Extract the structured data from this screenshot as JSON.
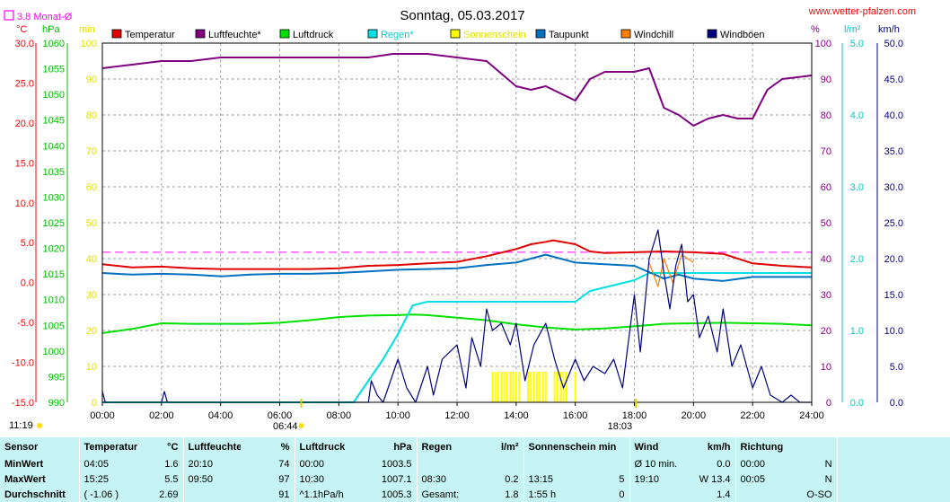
{
  "title": "Sonntag, 05.03.2017",
  "website": "www.wetter-pfalzen.com",
  "monthly_avg": "3.8 Monat-Ø",
  "monthly_avg_value": 3.8,
  "axis_headers": {
    "temp": "°C",
    "pressure": "hPa",
    "minutes": "min",
    "humidity": "%",
    "rain": "l/m²",
    "wind": "km/h"
  },
  "legend": [
    {
      "name": "Temperatur",
      "color": "#e00000"
    },
    {
      "name": "Luftfeuchte*",
      "color": "#800080"
    },
    {
      "name": "Luftdruck",
      "color": "#00e000"
    },
    {
      "name": "Regen*",
      "color": "#00e0e0"
    },
    {
      "name": "Sonnenschein",
      "color": "#ffff00"
    },
    {
      "name": "Taupunkt",
      "color": "#0070c0"
    },
    {
      "name": "Windchill",
      "color": "#ff8000"
    },
    {
      "name": "Windböen",
      "color": "#000080"
    }
  ],
  "axes": {
    "temp": {
      "ticks": [
        "30.0",
        "25.0",
        "20.0",
        "15.0",
        "10.0",
        "5.0",
        "0.0",
        "-5.0",
        "-10.0",
        "-15.0"
      ],
      "color": "#ff0000",
      "min": -15,
      "max": 30
    },
    "pressure": {
      "ticks": [
        "1060",
        "1055",
        "1050",
        "1045",
        "1040",
        "1035",
        "1030",
        "1025",
        "1020",
        "1015",
        "1010",
        "1005",
        "1000",
        "995",
        "990"
      ],
      "color": "#00c000",
      "min": 990,
      "max": 1060
    },
    "minutes": {
      "ticks": [
        "100",
        "90",
        "80",
        "70",
        "60",
        "50",
        "40",
        "30",
        "20",
        "10",
        "0"
      ],
      "color": "#e0e000",
      "min": 0,
      "max": 100
    },
    "humidity": {
      "ticks": [
        "100",
        "90",
        "80",
        "70",
        "60",
        "50",
        "40",
        "30",
        "20",
        "10",
        "0"
      ],
      "color": "#800080",
      "min": 0,
      "max": 100
    },
    "rain": {
      "ticks": [
        "5.0",
        "4.0",
        "3.0",
        "2.0",
        "1.0",
        "0.0"
      ],
      "color": "#00c8c8",
      "min": 0,
      "max": 5
    },
    "wind": {
      "ticks": [
        "50.0",
        "45.0",
        "40.0",
        "35.0",
        "30.0",
        "25.0",
        "20.0",
        "15.0",
        "10.0",
        "5.0",
        "0.0"
      ],
      "color": "#000080",
      "min": 0,
      "max": 50
    }
  },
  "x_ticks": [
    "00:00",
    "02:00",
    "04:00",
    "06:00",
    "08:00",
    "10:00",
    "12:00",
    "14:00",
    "16:00",
    "18:00",
    "20:00",
    "22:00",
    "24:00"
  ],
  "sunrise": "06:44",
  "sunset": "18:03",
  "sunrise_hour": 6.73,
  "sunset_hour": 18.05,
  "corner_time": "11:19",
  "chart_data": {
    "type": "line",
    "x_unit": "hour",
    "xlim": [
      0,
      24
    ],
    "grid": true,
    "series": [
      {
        "name": "Temperatur",
        "axis": "temp",
        "color": "#e00000",
        "x": [
          0,
          1,
          2,
          3,
          4,
          5,
          6,
          7,
          8,
          9,
          10,
          11,
          12,
          13,
          14,
          14.5,
          15,
          15.25,
          16,
          16.5,
          17,
          18,
          19,
          20,
          21,
          22,
          23,
          24
        ],
        "y": [
          2.3,
          1.9,
          2.0,
          1.8,
          1.7,
          1.7,
          1.7,
          1.7,
          1.8,
          2.1,
          2.2,
          2.4,
          2.6,
          3.3,
          4.2,
          4.8,
          5.1,
          5.3,
          4.8,
          3.9,
          3.7,
          3.8,
          3.9,
          3.8,
          3.6,
          2.4,
          2.1,
          1.9
        ]
      },
      {
        "name": "Luftfeuchte*",
        "axis": "humidity",
        "color": "#800080",
        "x": [
          0,
          1,
          2,
          3,
          4,
          5,
          6,
          7,
          8,
          9,
          9.83,
          11,
          12,
          13,
          14,
          14.5,
          15,
          15.5,
          16,
          16.5,
          17,
          18,
          18.5,
          19,
          19.5,
          20,
          20.5,
          21,
          21.5,
          22,
          22.5,
          23,
          24
        ],
        "y": [
          93,
          94,
          95,
          95,
          96,
          96,
          96,
          96,
          96,
          96,
          97,
          97,
          96,
          95,
          88,
          87,
          88,
          86,
          84,
          90,
          92,
          92,
          93,
          82,
          80,
          77,
          79,
          80,
          79,
          79,
          87,
          90,
          91
        ]
      },
      {
        "name": "Luftdruck",
        "axis": "pressure",
        "color": "#00e000",
        "x": [
          0,
          1,
          2,
          3,
          4,
          5,
          6,
          7,
          8,
          9,
          10,
          10.5,
          11,
          12,
          13,
          14,
          15,
          16,
          17,
          18,
          19,
          20,
          21,
          22,
          23,
          24
        ],
        "y": [
          1003.5,
          1004.3,
          1005.4,
          1005.3,
          1005.3,
          1005.3,
          1005.5,
          1006.0,
          1006.6,
          1006.9,
          1007.0,
          1007.1,
          1007.0,
          1006.5,
          1006.0,
          1005.2,
          1004.6,
          1004.2,
          1004.4,
          1004.8,
          1005.3,
          1005.4,
          1005.5,
          1005.4,
          1005.3,
          1005.0
        ]
      },
      {
        "name": "Regen*",
        "axis": "rain",
        "color": "#00e0e0",
        "x": [
          0,
          8,
          8.5,
          9,
          9.5,
          10,
          10.5,
          11,
          12,
          13,
          14,
          15,
          16,
          16.5,
          17,
          17.5,
          18,
          18.5,
          19,
          19.5,
          20,
          22,
          24
        ],
        "y": [
          0,
          0,
          0,
          0.3,
          0.6,
          0.95,
          1.35,
          1.4,
          1.4,
          1.4,
          1.4,
          1.4,
          1.4,
          1.55,
          1.6,
          1.65,
          1.7,
          1.8,
          1.8,
          1.8,
          1.8,
          1.8,
          1.8
        ]
      },
      {
        "name": "Taupunkt",
        "axis": "temp",
        "color": "#0070c0",
        "x": [
          0,
          1,
          2,
          3,
          4,
          4.08,
          5,
          6,
          7,
          8,
          9,
          10,
          11,
          12,
          13,
          14,
          14.5,
          15,
          15.5,
          16,
          17,
          18,
          19,
          19.5,
          20,
          21,
          22,
          23,
          24
        ],
        "y": [
          1.2,
          1.0,
          1.1,
          1.0,
          0.8,
          0.8,
          1.0,
          1.1,
          1.1,
          1.2,
          1.4,
          1.6,
          1.7,
          1.8,
          2.2,
          2.5,
          3.0,
          3.5,
          3.0,
          2.5,
          2.3,
          2.1,
          0.5,
          1.0,
          0.5,
          0.2,
          0.7,
          0.7,
          0.7
        ]
      },
      {
        "name": "Windchill",
        "axis": "temp",
        "color": "#ff8000",
        "x": [
          18.5,
          18.8,
          19.0,
          19.3,
          19.6,
          20.0
        ],
        "y": [
          2.5,
          -0.5,
          3.0,
          0.0,
          3.5,
          2.5
        ]
      },
      {
        "name": "Windböen",
        "axis": "wind",
        "color": "#000080",
        "x": [
          0,
          0.1,
          0.3,
          2,
          2.1,
          2.2,
          9,
          9.1,
          9.3,
          9.5,
          10,
          10.3,
          10.6,
          11,
          11.2,
          11.5,
          12,
          12.3,
          12.5,
          12.8,
          13,
          13.2,
          13.5,
          13.8,
          14,
          14.3,
          14.6,
          15,
          15.3,
          15.6,
          16,
          16.3,
          16.6,
          17,
          17.3,
          17.6,
          18,
          18.2,
          18.5,
          18.8,
          19,
          19.2,
          19.4,
          19.6,
          19.8,
          20,
          20.2,
          20.5,
          20.8,
          21,
          21.3,
          21.6,
          22,
          22.3,
          22.6,
          23,
          23.3,
          23.6,
          24
        ],
        "y": [
          1.5,
          0,
          0,
          0,
          1.5,
          0,
          0,
          3,
          1,
          0,
          6,
          2,
          0,
          5,
          1,
          6,
          8,
          2,
          9,
          5,
          13,
          10,
          11,
          8,
          11,
          3,
          8,
          11,
          6,
          2,
          6,
          3,
          5,
          4,
          6,
          2,
          15,
          7,
          20,
          24,
          18,
          13,
          19,
          22,
          14,
          15,
          9,
          12,
          7,
          13,
          5,
          8,
          2,
          5,
          1,
          0,
          1,
          0,
          0
        ]
      }
    ],
    "sunshine": {
      "name": "Sonnenschein",
      "axis": "minutes",
      "color": "#ffff00",
      "x": [
        13.2,
        13.3,
        13.4,
        13.5,
        13.6,
        13.7,
        13.8,
        13.9,
        14.0,
        14.1,
        14.4,
        14.5,
        14.6,
        14.7,
        14.8,
        14.9,
        15.0,
        15.3,
        15.4,
        15.5,
        15.6,
        15.7,
        16.0
      ],
      "y": [
        5,
        5,
        5,
        5,
        5,
        5,
        5,
        5,
        5,
        5,
        5,
        5,
        5,
        5,
        5,
        5,
        5,
        5,
        5,
        5,
        5,
        5,
        5
      ]
    }
  },
  "stats": {
    "headers": {
      "sensor": "Sensor",
      "temp": "Temperatur",
      "temp_unit": "°C",
      "hum": "Luftfeuchte",
      "hum_unit": "%",
      "press": "Luftdruck",
      "press_unit": "hPa",
      "rain": "Regen",
      "rain_unit": "l/m²",
      "sun": "Sonnenschein min",
      "wind": "Wind",
      "wind_unit": "km/h",
      "dir": "Richtung"
    },
    "rows": [
      {
        "label": "MinWert",
        "temp_time": "04:05",
        "temp_val": "1.6",
        "hum_time": "20:10",
        "hum_val": "74",
        "press_time": "00:00",
        "press_val": "1003.5",
        "rain_time": "",
        "rain_val": "",
        "sun_time": "",
        "sun_val": "",
        "wind_time": "Ø 10 min.",
        "wind_val": "0.0",
        "dir_time": "00:00",
        "dir_val": "N"
      },
      {
        "label": "MaxWert",
        "temp_time": "15:25",
        "temp_val": "5.5",
        "hum_time": "09:50",
        "hum_val": "97",
        "press_time": "10:30",
        "press_val": "1007.1",
        "rain_time": "08:30",
        "rain_val": "0.2",
        "sun_time": "13:15",
        "sun_val": "5",
        "wind_time": "19:10",
        "wind_val": "W 13.4",
        "dir_time": "00:05",
        "dir_val": "N"
      },
      {
        "label": "Durchschnitt",
        "temp_time": "( -1.06 )",
        "temp_val": "2.69",
        "hum_time": "",
        "hum_val": "91",
        "press_time": "^1.1hPa/h",
        "press_val": "1005.3",
        "rain_time": "Gesamt:",
        "rain_val": "1.8",
        "sun_time": "1:55 h",
        "sun_val": "0",
        "wind_time": "",
        "wind_val": "1.4",
        "dir_time": "",
        "dir_val": "O-SO"
      }
    ]
  }
}
